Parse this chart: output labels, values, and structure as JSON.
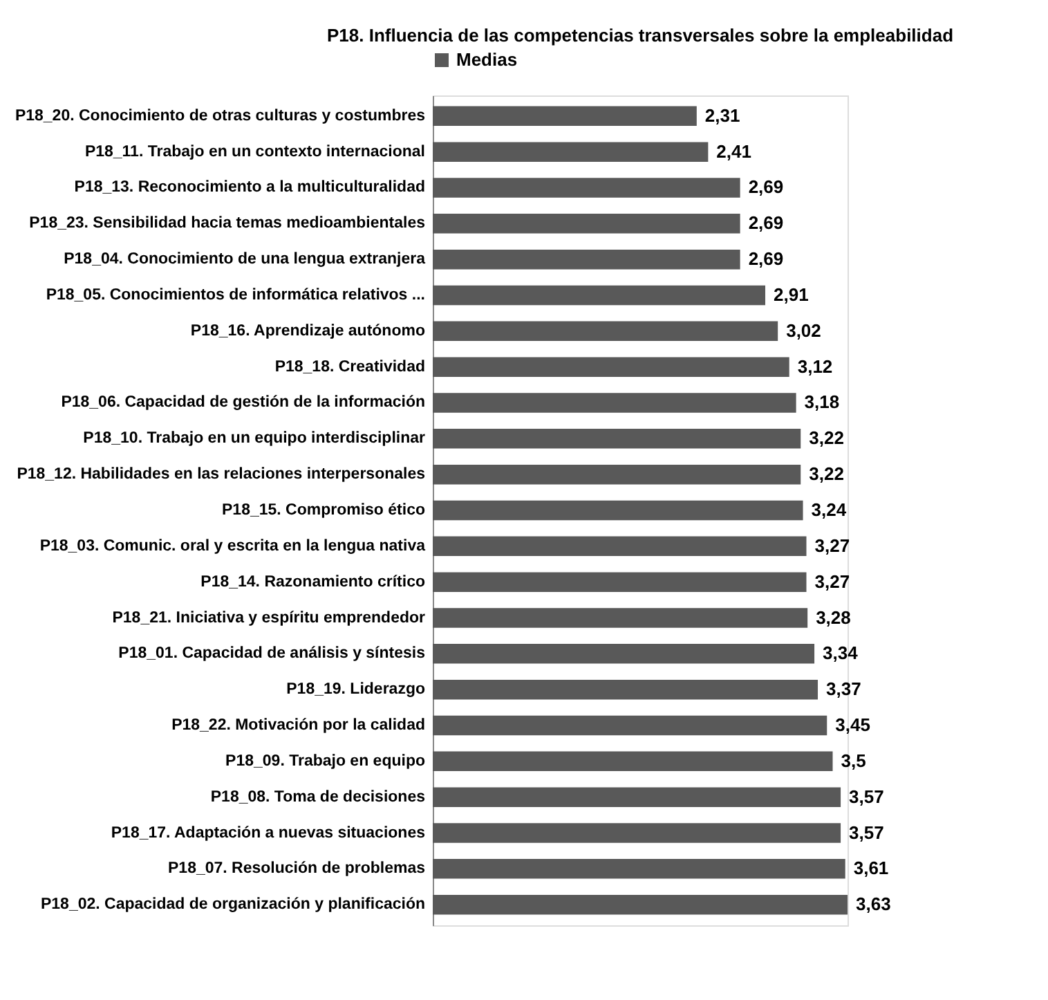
{
  "chart_data": {
    "type": "bar",
    "orientation": "horizontal",
    "title": "P18. Influencia de las competencias transversales sobre la empleabilidad",
    "legend": "top",
    "tick_labels": "y",
    "grid": false,
    "categories": [
      "P18_20. Conocimiento de otras culturas y costumbres",
      "P18_11. Trabajo en un contexto internacional",
      "P18_13. Reconocimiento a la multiculturalidad",
      "P18_23. Sensibilidad hacia temas medioambientales",
      "P18_04. Conocimiento de una lengua extranjera",
      "P18_05. Conocimientos de informática relativos ...",
      "P18_16. Aprendizaje autónomo",
      "P18_18. Creatividad",
      "P18_06. Capacidad de gestión de la información",
      "P18_10. Trabajo en un equipo interdisciplinar",
      "P18_12. Habilidades en las relaciones interpersonales",
      "P18_15. Compromiso ético",
      "P18_03. Comunic. oral y escrita en la lengua nativa",
      "P18_14. Razonamiento crítico",
      "P18_21. Iniciativa y espíritu emprendedor",
      "P18_01. Capacidad de análisis y síntesis",
      "P18_19. Liderazgo",
      "P18_22. Motivación por la calidad",
      "P18_09. Trabajo en equipo",
      "P18_08. Toma de decisiones",
      "P18_17. Adaptación a nuevas situaciones",
      "P18_07. Resolución de problemas",
      "P18_02. Capacidad de organización y planificación"
    ],
    "series": [
      {
        "name": "Medias",
        "color": "#595959",
        "values": [
          2.31,
          2.41,
          2.69,
          2.69,
          2.69,
          2.91,
          3.02,
          3.12,
          3.18,
          3.22,
          3.22,
          3.24,
          3.27,
          3.27,
          3.28,
          3.34,
          3.37,
          3.45,
          3.5,
          3.57,
          3.57,
          3.61,
          3.63
        ],
        "value_labels": [
          "2,31",
          "2,41",
          "2,69",
          "2,69",
          "2,69",
          "2,91",
          "3,02",
          "3,12",
          "3,18",
          "3,22",
          "3,22",
          "3,24",
          "3,27",
          "3,27",
          "3,28",
          "3,34",
          "3,37",
          "3,45",
          "3,5",
          "3,57",
          "3,57",
          "3,61",
          "3,63"
        ]
      }
    ]
  }
}
